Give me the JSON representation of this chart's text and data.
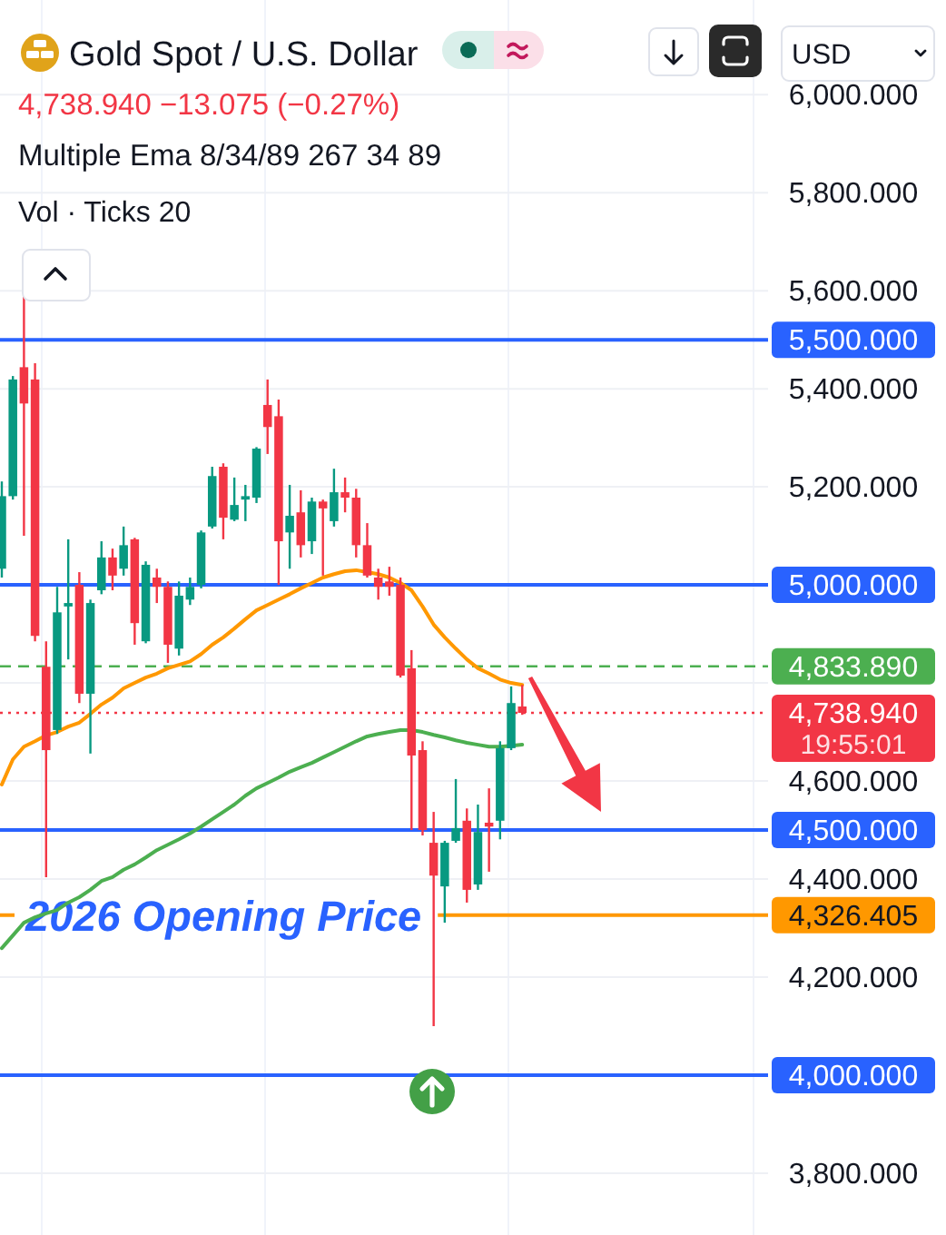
{
  "chart_data": {
    "type": "candlestick",
    "title": "Gold Spot / U.S. Dollar",
    "subtitle": "4,738.940 −13.075 (−0.27%)",
    "categories": [
      null,
      null,
      null,
      null,
      null,
      null,
      null,
      null,
      null,
      null,
      null,
      null,
      null,
      null,
      null,
      null,
      null,
      null,
      null,
      null,
      null,
      null,
      null,
      null,
      null,
      null,
      null,
      null,
      null,
      null,
      null,
      null,
      null,
      null,
      null,
      null,
      null,
      null,
      null,
      null,
      null,
      null,
      null,
      null,
      null,
      null,
      null,
      null
    ],
    "ohlc": [
      [
        5033,
        5211,
        5015,
        5181
      ],
      [
        5181,
        5426,
        5174,
        5419
      ],
      [
        5444,
        5589,
        5100,
        5370
      ],
      [
        5419,
        5452,
        4885,
        4896
      ],
      [
        4833,
        4885,
        4404,
        4663
      ],
      [
        4704,
        4996,
        4696,
        4944
      ],
      [
        4956,
        5093,
        4848,
        4963
      ],
      [
        5000,
        5026,
        4759,
        4778
      ],
      [
        4778,
        4970,
        4656,
        4963
      ],
      [
        4989,
        5089,
        4981,
        5056
      ],
      [
        5056,
        5074,
        4989,
        5019
      ],
      [
        5033,
        5119,
        5019,
        5081
      ],
      [
        5093,
        5096,
        4878,
        4922
      ],
      [
        4885,
        5048,
        4881,
        5041
      ],
      [
        5015,
        5033,
        4963,
        4996
      ],
      [
        4996,
        5007,
        4841,
        4878
      ],
      [
        4870,
        5007,
        4856,
        4978
      ],
      [
        4970,
        5015,
        4959,
        4996
      ],
      [
        5000,
        5111,
        4993,
        5107
      ],
      [
        5119,
        5241,
        5115,
        5222
      ],
      [
        5241,
        5248,
        5093,
        5137
      ],
      [
        5133,
        5219,
        5130,
        5163
      ],
      [
        5174,
        5204,
        5130,
        5181
      ],
      [
        5178,
        5281,
        5167,
        5278
      ],
      [
        5367,
        5419,
        5267,
        5322
      ],
      [
        5344,
        5378,
        5000,
        5089
      ],
      [
        5107,
        5204,
        5033,
        5141
      ],
      [
        5148,
        5193,
        5056,
        5081
      ],
      [
        5089,
        5178,
        5063,
        5170
      ],
      [
        5170,
        5174,
        5019,
        5156
      ],
      [
        5130,
        5237,
        5119,
        5189
      ],
      [
        5189,
        5219,
        5148,
        5178
      ],
      [
        5178,
        5196,
        5056,
        5081
      ],
      [
        5081,
        5126,
        5015,
        5019
      ],
      [
        5015,
        5033,
        4970,
        4996
      ],
      [
        5007,
        5037,
        4978,
        4996
      ],
      [
        5000,
        5015,
        4811,
        4815
      ],
      [
        4830,
        4867,
        4500,
        4652
      ],
      [
        4663,
        4681,
        4489,
        4500
      ],
      [
        4474,
        4537,
        4100,
        4407
      ],
      [
        4385,
        4478,
        4311,
        4474
      ],
      [
        4478,
        4604,
        4474,
        4504
      ],
      [
        4519,
        4544,
        4352,
        4378
      ],
      [
        4389,
        4552,
        4378,
        4496
      ],
      [
        4515,
        4585,
        4415,
        4507
      ],
      [
        4519,
        4681,
        4481,
        4667
      ],
      [
        4667,
        4793,
        4663,
        4759
      ],
      [
        4752,
        4796,
        4735,
        4738.94
      ]
    ],
    "colors": [
      "#089981",
      "#089981",
      "#f23645",
      "#f23645",
      "#f23645",
      "#089981",
      "#089981",
      "#f23645",
      "#089981",
      "#089981",
      "#f23645",
      "#089981",
      "#f23645",
      "#089981",
      "#f23645",
      "#f23645",
      "#089981",
      "#089981",
      "#089981",
      "#089981",
      "#f23645",
      "#089981",
      "#089981",
      "#089981",
      "#f23645",
      "#f23645",
      "#089981",
      "#f23645",
      "#089981",
      "#f23645",
      "#089981",
      "#f23645",
      "#f23645",
      "#f23645",
      "#f23645",
      "#f23645",
      "#f23645",
      "#f23645",
      "#f23645",
      "#f23645",
      "#089981",
      "#089981",
      "#f23645",
      "#089981",
      "#f23645",
      "#089981",
      "#089981",
      "#f23645"
    ],
    "series": [
      {
        "type": "line",
        "color": "#ff9800",
        "values": [
          4593,
          4644,
          4670,
          4681,
          4693,
          4700,
          4711,
          4719,
          4737,
          4756,
          4770,
          4789,
          4800,
          4811,
          4819,
          4830,
          4837,
          4844,
          4859,
          4878,
          4893,
          4911,
          4930,
          4948,
          4959,
          4970,
          4981,
          4993,
          5004,
          5015,
          5022,
          5028,
          5030,
          5026,
          5022,
          5015,
          5004,
          4989,
          4956,
          4919,
          4893,
          4870,
          4848,
          4830,
          4819,
          4807,
          4800,
          4796
        ]
      },
      {
        "type": "line",
        "color": "#4caf50",
        "values": [
          4259,
          4285,
          4311,
          4322,
          4330,
          4337,
          4352,
          4363,
          4378,
          4396,
          4404,
          4419,
          4430,
          4444,
          4459,
          4470,
          4481,
          4493,
          4507,
          4522,
          4537,
          4552,
          4570,
          4585,
          4596,
          4607,
          4619,
          4628,
          4637,
          4648,
          4659,
          4670,
          4681,
          4691,
          4696,
          4700,
          4704,
          4704,
          4700,
          4694,
          4689,
          4683,
          4678,
          4674,
          4670,
          4670,
          4672,
          4674
        ]
      }
    ],
    "ylim": [
      3674,
      6193
    ],
    "yticks": [
      {
        "value": 3800,
        "label": "3,800.000"
      },
      {
        "value": 4200,
        "label": "4,200.000"
      },
      {
        "value": 4400,
        "label": "4,400.000"
      },
      {
        "value": 4600,
        "label": "4,600.000"
      },
      {
        "value": 4800,
        "label": null
      },
      {
        "value": 5200,
        "label": "5,200.000"
      },
      {
        "value": 5400,
        "label": "5,400.000"
      },
      {
        "value": 5600,
        "label": "5,600.000"
      },
      {
        "value": 5800,
        "label": "5,800.000"
      },
      {
        "value": 6000,
        "label": "6,000.000"
      }
    ],
    "ref_lines": [
      {
        "axis": "y",
        "value": 5500,
        "label": "5,500.000",
        "color": "#2962ff",
        "line_style": "solid"
      },
      {
        "axis": "y",
        "value": 5000,
        "label": "5,000.000",
        "color": "#2962ff",
        "line_style": "solid"
      },
      {
        "axis": "y",
        "value": 4833.89,
        "label": "4,833.890",
        "color": "#4caf50",
        "line_style": "dashed"
      },
      {
        "axis": "y",
        "value": 4738.94,
        "label": "4,738.940",
        "color": "#f23645",
        "line_style": "dotted"
      },
      {
        "axis": "y",
        "value": 4500,
        "label": "4,500.000",
        "color": "#2962ff",
        "line_style": "solid"
      },
      {
        "axis": "y",
        "value": 4326.405,
        "label": "4,326.405",
        "color": "#ff9800",
        "line_style": "solid"
      },
      {
        "axis": "y",
        "value": 4000,
        "label": "4,000.000",
        "color": "#2962ff",
        "line_style": "solid"
      }
    ],
    "annotations": [
      "Multiple Ema 8/34/89 267 34 89",
      "Vol · Ticks 20",
      "USD",
      "19:55:01",
      "2026 Opening Price"
    ],
    "grid": "y",
    "tick_labels": "y"
  }
}
